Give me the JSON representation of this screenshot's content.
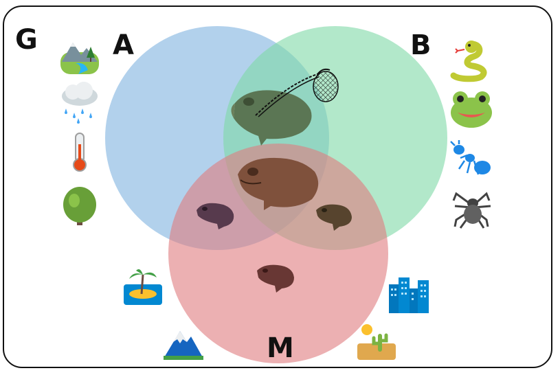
{
  "labels": {
    "g": "G",
    "a": "A",
    "b": "B",
    "m": "M"
  },
  "circle_colors": {
    "a": "#7fb2e0",
    "b": "#7ed9a6",
    "m": "#e07c7f"
  },
  "icons_left": [
    "landscape-icon",
    "rain-cloud-icon",
    "thermometer-icon",
    "tree-icon"
  ],
  "icons_right": [
    "snake-icon",
    "frog-face-icon",
    "ant-icon",
    "spider-icon"
  ],
  "icons_bottom": [
    "island-icon",
    "mountain-icon",
    "city-icon",
    "desert-icon"
  ],
  "center_items": [
    "frog-with-net-icon",
    "frog-icon"
  ]
}
